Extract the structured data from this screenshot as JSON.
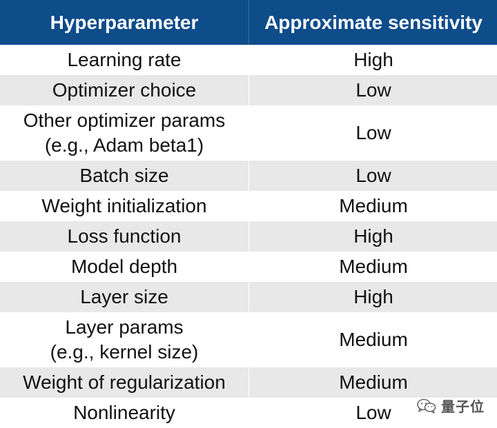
{
  "table": {
    "headers": [
      "Hyperparameter",
      "Approximate sensitivity"
    ],
    "rows": [
      {
        "param": [
          "Learning rate"
        ],
        "sensitivity": "High"
      },
      {
        "param": [
          "Optimizer choice"
        ],
        "sensitivity": "Low"
      },
      {
        "param": [
          "Other optimizer params",
          "(e.g., Adam beta1)"
        ],
        "sensitivity": "Low"
      },
      {
        "param": [
          "Batch size"
        ],
        "sensitivity": "Low"
      },
      {
        "param": [
          "Weight initialization"
        ],
        "sensitivity": "Medium"
      },
      {
        "param": [
          "Loss function"
        ],
        "sensitivity": "High"
      },
      {
        "param": [
          "Model depth"
        ],
        "sensitivity": "Medium"
      },
      {
        "param": [
          "Layer size"
        ],
        "sensitivity": "High"
      },
      {
        "param": [
          "Layer params",
          "(e.g., kernel size)"
        ],
        "sensitivity": "Medium"
      },
      {
        "param": [
          "Weight of regularization"
        ],
        "sensitivity": "Medium"
      },
      {
        "param": [
          "Nonlinearity"
        ],
        "sensitivity": "Low"
      }
    ]
  },
  "watermark": {
    "text": "量子位",
    "icon": "wechat-icon"
  },
  "colors": {
    "header_bg": "#0e4c8a",
    "header_text": "#ffffff",
    "row_alt_bg": "#e8e8e8"
  }
}
